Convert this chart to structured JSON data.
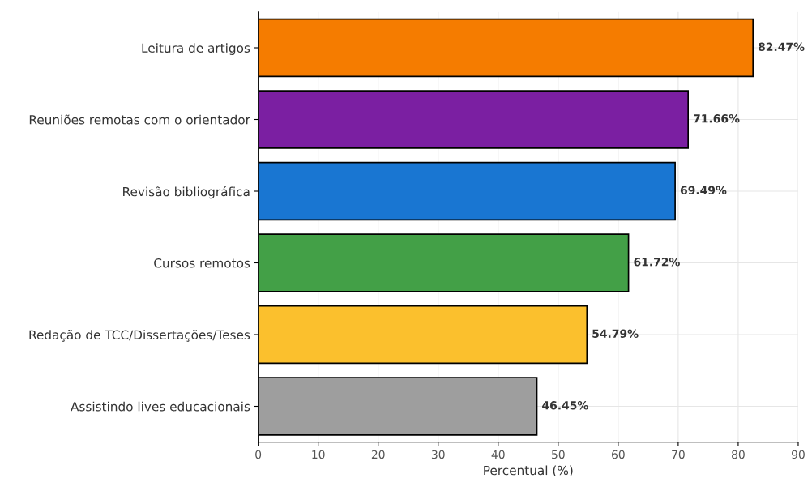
{
  "chart_data": {
    "type": "bar",
    "orientation": "horizontal",
    "xlabel": "Percentual (%)",
    "categories": [
      "Leitura de artigos",
      "Reuniões remotas com o orientador",
      "Revisão bibliográfica",
      "Cursos remotos",
      "Redação de TCC/Dissertações/Teses",
      "Assistindo lives educacionais"
    ],
    "values": [
      82.47,
      71.66,
      69.49,
      61.72,
      54.79,
      46.45
    ],
    "value_labels": [
      "82.47%",
      "71.66%",
      "69.49%",
      "61.72%",
      "54.79%",
      "46.45%"
    ],
    "colors": [
      "#f57c00",
      "#7b1fa2",
      "#1976d2",
      "#43a047",
      "#fbc02d",
      "#9e9e9e"
    ],
    "xlim": [
      0,
      90
    ],
    "xticks": [
      0,
      10,
      20,
      30,
      40,
      50,
      60,
      70,
      80,
      90
    ],
    "grid": true
  }
}
